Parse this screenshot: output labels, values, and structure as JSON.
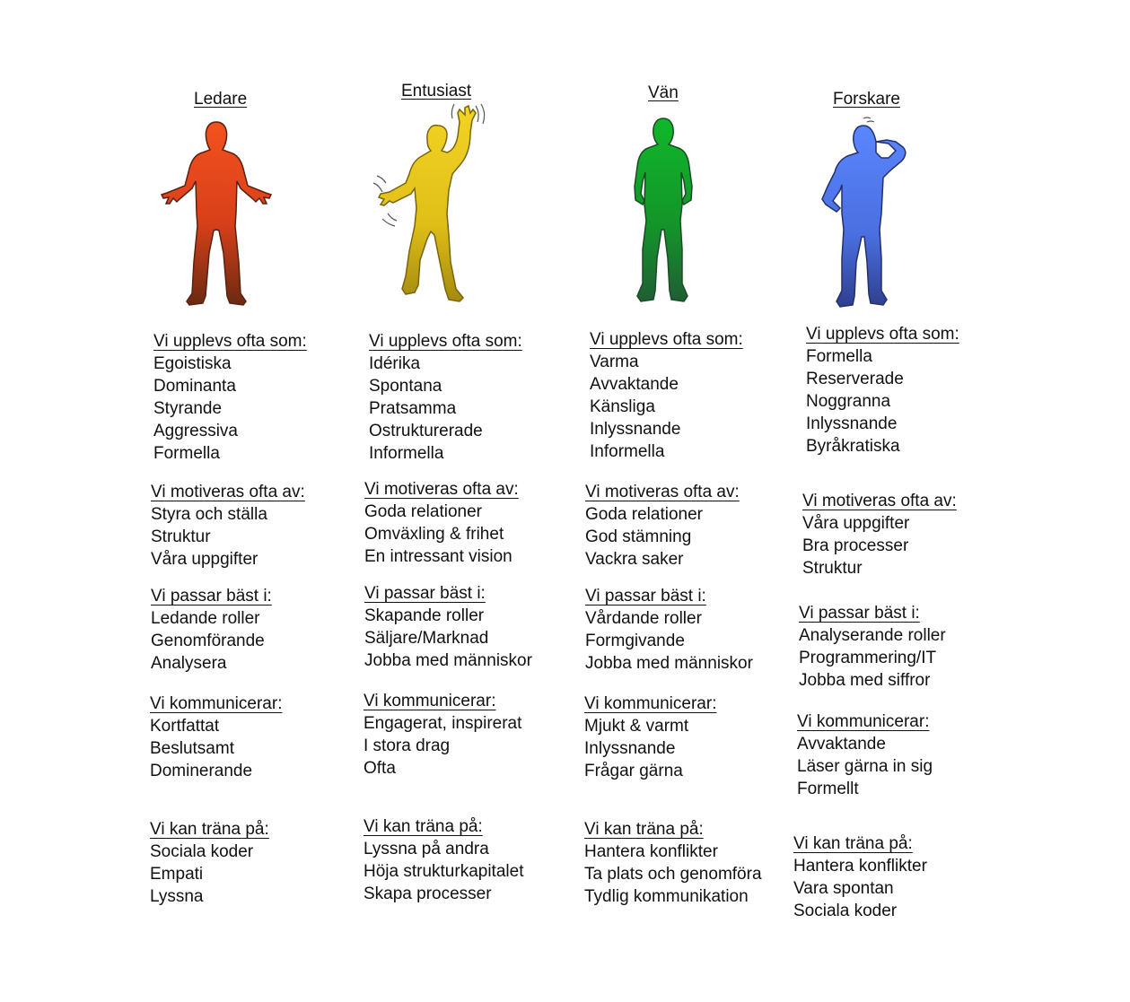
{
  "columns": [
    {
      "id": "ledare",
      "title": "Ledare",
      "color": "#e8481a",
      "sections": [
        {
          "heading": "Vi upplevs ofta som:",
          "items": [
            "Egoistiska",
            "Dominanta",
            "Styrande",
            "Aggressiva",
            "Formella"
          ]
        },
        {
          "heading": "Vi motiveras ofta av:",
          "items": [
            "Styra och ställa",
            "Struktur",
            "Våra uppgifter"
          ]
        },
        {
          "heading": "Vi passar bäst i:",
          "items": [
            "Ledande roller",
            "Genomförande",
            "Analysera"
          ]
        },
        {
          "heading": "Vi kommunicerar:",
          "items": [
            "Kortfattat",
            "Beslutsamt",
            "Dominerande"
          ]
        },
        {
          "heading": "Vi kan träna på:",
          "items": [
            "Sociala koder",
            "Empati",
            "Lyssna"
          ]
        }
      ]
    },
    {
      "id": "entusiast",
      "title": "Entusiast",
      "color": "#e5c51a",
      "sections": [
        {
          "heading": "Vi upplevs ofta som:",
          "items": [
            "Idérika",
            "Spontana",
            "Pratsamma",
            "Ostrukturerade",
            "Informella"
          ]
        },
        {
          "heading": "Vi motiveras ofta av:",
          "items": [
            "Goda relationer",
            "Omväxling & frihet",
            "En intressant vision"
          ]
        },
        {
          "heading": "Vi passar bäst i:",
          "items": [
            "Skapande roller",
            "Säljare/Marknad",
            "Jobba med människor"
          ]
        },
        {
          "heading": "Vi kommunicerar:",
          "items": [
            "Engagerat, inspirerat",
            "I stora drag",
            "Ofta"
          ]
        },
        {
          "heading": "Vi kan träna på:",
          "items": [
            "Lyssna på andra",
            "Höja strukturkapitalet",
            "Skapa processer"
          ]
        }
      ]
    },
    {
      "id": "van",
      "title": "Vän",
      "color": "#1a9e2a",
      "sections": [
        {
          "heading": "Vi upplevs ofta som:",
          "items": [
            "Varma",
            "Avvaktande",
            "Känsliga",
            "Inlyssnande",
            "Informella"
          ]
        },
        {
          "heading": "Vi motiveras ofta av:",
          "items": [
            "Goda relationer",
            "God stämning",
            "Vackra saker"
          ]
        },
        {
          "heading": "Vi passar bäst i:",
          "items": [
            "Vårdande roller",
            "Formgivande",
            "Jobba med människor"
          ]
        },
        {
          "heading": "Vi kommunicerar:",
          "items": [
            "Mjukt & varmt",
            "Inlyssnande",
            "Frågar gärna"
          ]
        },
        {
          "heading": "Vi kan träna på:",
          "items": [
            "Hantera konflikter",
            "Ta plats och genomföra",
            "Tydlig kommunikation"
          ]
        }
      ]
    },
    {
      "id": "forskare",
      "title": "Forskare",
      "color": "#4a6fe0",
      "sections": [
        {
          "heading": "Vi upplevs ofta som:",
          "items": [
            "Formella",
            "Reserverade",
            "Noggranna",
            "Inlyssnande",
            "Byråkratiska"
          ]
        },
        {
          "heading": "Vi motiveras ofta av:",
          "items": [
            "Våra uppgifter",
            "Bra processer",
            "Struktur"
          ]
        },
        {
          "heading": "Vi passar bäst i:",
          "items": [
            "Analyserande roller",
            "Programmering/IT",
            "Jobba med siffror"
          ]
        },
        {
          "heading": "Vi kommunicerar:",
          "items": [
            "Avvaktande",
            "Läser gärna in sig",
            "Formellt"
          ]
        },
        {
          "heading": "Vi kan träna på:",
          "items": [
            "Hantera konflikter",
            "Vara spontan",
            "Sociala koder"
          ]
        }
      ]
    }
  ]
}
